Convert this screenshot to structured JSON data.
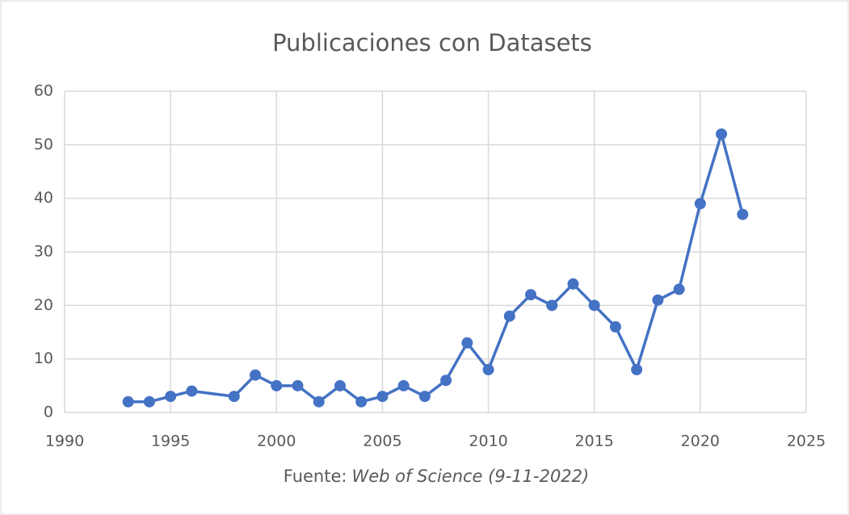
{
  "chart_data": {
    "type": "line",
    "title": "Publicaciones con Datasets",
    "source_label": "Fuente:",
    "source": "Web of Science (9-11-2022)",
    "x": [
      1993,
      1994,
      1995,
      1996,
      1998,
      1999,
      2000,
      2001,
      2002,
      2003,
      2004,
      2005,
      2006,
      2007,
      2008,
      2009,
      2010,
      2011,
      2012,
      2013,
      2014,
      2015,
      2016,
      2017,
      2018,
      2019,
      2020,
      2021,
      2022
    ],
    "series": [
      {
        "color": "#4472c4",
        "values": [
          2,
          2,
          3,
          4,
          3,
          7,
          5,
          5,
          2,
          5,
          2,
          3,
          5,
          3,
          6,
          13,
          8,
          18,
          22,
          20,
          24,
          20,
          16,
          8,
          21,
          23,
          39,
          52,
          37
        ]
      }
    ],
    "xlim": [
      1990,
      2025
    ],
    "xticks": [
      1990,
      1995,
      2000,
      2005,
      2010,
      2015,
      2020,
      2025
    ],
    "ylim": [
      0,
      60
    ],
    "yticks": [
      0,
      10,
      20,
      30,
      40,
      50,
      60
    ],
    "grid": true
  }
}
